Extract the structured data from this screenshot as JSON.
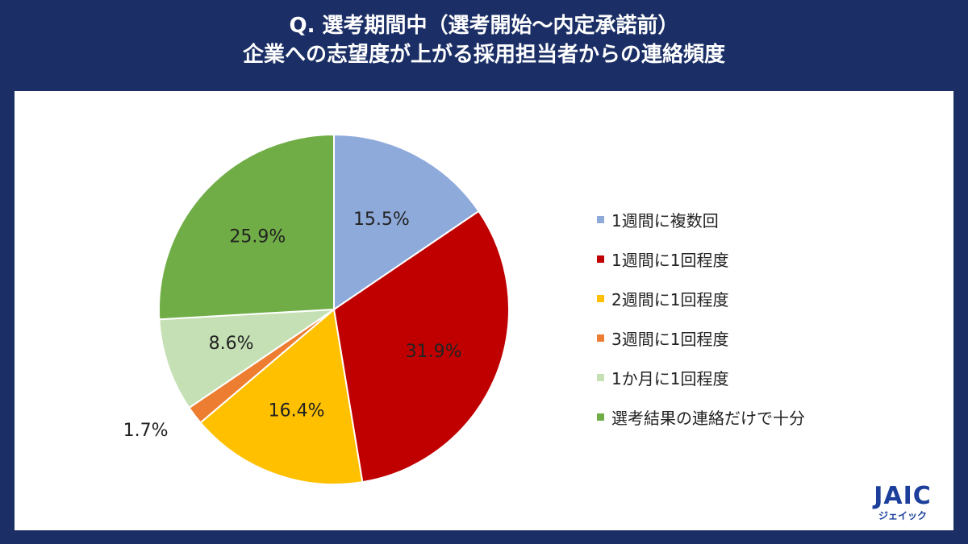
{
  "title_line1": "Q. 選考期間中（選考開始～内定承諾前）",
  "title_line2": "企業への志望度が上がる採用担当者からの連絡頻度",
  "chart_data": {
    "type": "pie",
    "categories": [
      "1週間に複数回",
      "1週間に1回程度",
      "2週間に1回程度",
      "3週間に1回程度",
      "1か月に1回程度",
      "選考結果の連絡だけで十分"
    ],
    "values": [
      15.5,
      31.9,
      16.4,
      1.7,
      8.6,
      25.9
    ],
    "labels": [
      "15.5%",
      "31.9%",
      "16.4%",
      "1.7%",
      "8.6%",
      "25.9%"
    ],
    "colors": [
      "#8eaadb",
      "#c00000",
      "#ffc000",
      "#ed7d31",
      "#c5e0b4",
      "#70ad47"
    ],
    "legend_position": "right"
  },
  "logo": {
    "mark": "JAIC",
    "kana": "ジェイック"
  }
}
